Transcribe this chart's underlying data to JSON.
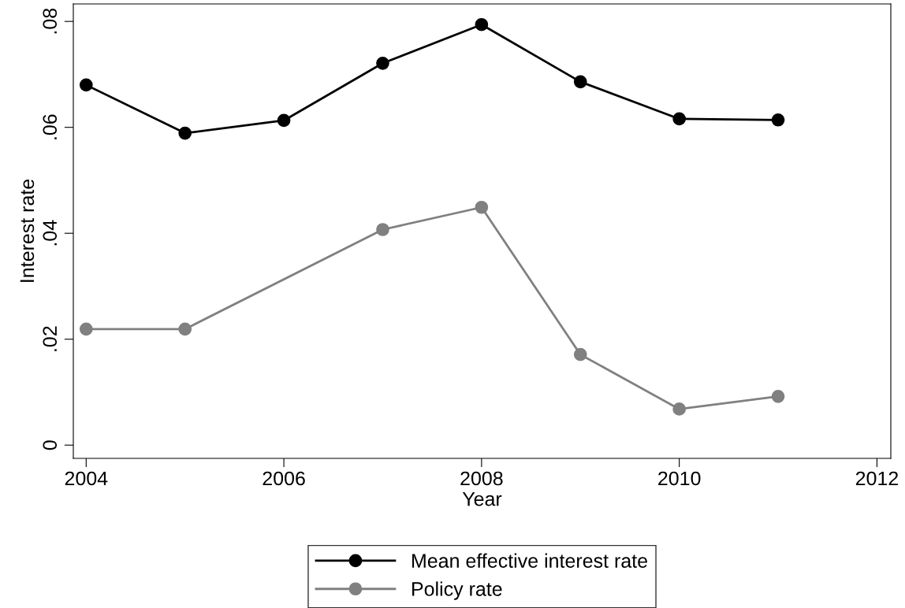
{
  "chart_data": {
    "type": "line",
    "xlabel": "Year",
    "ylabel": "Interest rate",
    "series": [
      {
        "name": "Mean effective interest rate",
        "color": "#000000",
        "x": [
          2004,
          2005,
          2006,
          2007,
          2008,
          2009,
          2010,
          2011
        ],
        "values": [
          0.068,
          0.0589,
          0.0613,
          0.0721,
          0.0794,
          0.0686,
          0.0616,
          0.0614
        ]
      },
      {
        "name": "Policy rate",
        "color": "#808080",
        "x": [
          2004,
          2005,
          2007,
          2008,
          2009,
          2010,
          2011
        ],
        "values": [
          0.0219,
          0.0219,
          0.0407,
          0.0449,
          0.0171,
          0.0068,
          0.0092
        ]
      }
    ],
    "xlim": [
      2003.87,
      2012.14
    ],
    "xticks": [
      2004,
      2006,
      2008,
      2010,
      2012
    ],
    "ylim": [
      -0.0025,
      0.0833
    ],
    "yticks": [
      0,
      {
        "value": 0.02,
        "label": ".02"
      },
      {
        "value": 0.04,
        "label": ".04"
      },
      {
        "value": 0.06,
        "label": ".06"
      },
      {
        "value": 0.08,
        "label": ".08"
      }
    ],
    "grid": false,
    "legend": "bottom",
    "marker": "circle",
    "line_style": "solid"
  }
}
